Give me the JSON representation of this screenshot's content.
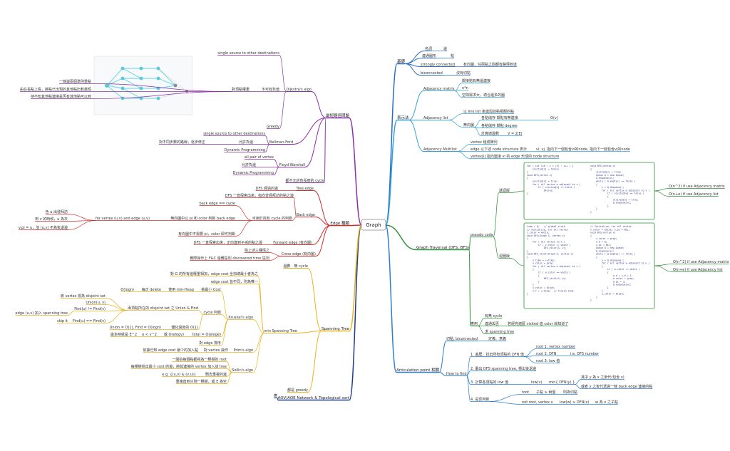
{
  "root": "Graph",
  "branches": [
    {
      "label": "基礎",
      "color": "#2b6cc4",
      "children": [
        {
          "label": "名詞",
          "children": [
            {
              "label": "邊"
            }
          ]
        },
        {
          "label": "連通圖形",
          "children": [
            {
              "label": "點"
            }
          ]
        },
        {
          "label": "strongly connected",
          "children": [
            {
              "label": "有向圖，任兩點之間都有路徑到達"
            }
          ]
        },
        {
          "label": "biconnected",
          "children": [
            {
              "label": "沒有切點"
            }
          ]
        }
      ]
    },
    {
      "label": "表示法",
      "color": "#2fa3d8",
      "children": [
        {
          "label": "Adjacency matrix",
          "children": [
            {
              "label": "鄰接點有無邊連接"
            },
            {
              "label": "n*n"
            },
            {
              "label": "空間需求大，適合邊多的圖"
            }
          ]
        },
        {
          "label": "Adjacency list",
          "children": [
            {
              "label": "以 link list 串連與該點相鄰的點"
            },
            {
              "label": "無向圖",
              "children": [
                {
                  "label": "各點儲存 鄰點有無連接",
                  "children": [
                    {
                      "label": "O(v)"
                    }
                  ]
                },
                {
                  "label": "各點儲存 鄰點 degree"
                },
                {
                  "label": "計算總邊數",
                  "children": [
                    {
                      "label": "V = 2|E|"
                    }
                  ]
                }
              ]
            }
          ]
        },
        {
          "label": "Adjacency Multilist",
          "children": [
            {
              "label": "vertex 組成陣列"
            },
            {
              "label": "edge 以下述 node structure 表示",
              "children": [
                {
                  "label": "vi, vj, 指向下一個包含vi的node, 指向下一個包含vj的node"
                }
              ]
            },
            {
              "label": "vertex[i] 指向連接 vi 的 edge 形成的 node structure"
            }
          ]
        }
      ]
    },
    {
      "label": "Graph Traversal (DFS, BFS)",
      "color": "#2e8f3a",
      "children": [
        {
          "label": "pseudo code",
          "children": [
            {
              "label": "遞迴版",
              "code": {
                "left": [
                  "for ( int i=0 ; i < |V| ; i++ ) {",
                  "    visited[i] = false;",
                  "}",
                  "void DFS(vertex v)",
                  "{",
                  "    visited[v] = true;",
                  "    for ( all vertex w adjacent to v )",
                  "        if ( visited[w] == false )",
                  "            DFS(w);",
                  "}"
                ],
                "right": [
                  "void BFS(vertex v)",
                  "{",
                  "    visited[v] = true;",
                  "    Queue Q = new Queue;",
                  "    Q.enqueue(v);",
                  "    while ( Q.empty() == false )",
                  "    {",
                  "        v = Q.dequeue();",
                  "        for ( all vertex w adjacent to v )",
                  "            if ( visited[w] == false )",
                  "            {",
                  "                visited[w] = true;",
                  "                Q.enqueue(w);",
                  "            }",
                  "    }",
                  "}"
                ]
              },
              "children": [
                {
                  "label": "O(n^2) if use Adjacency matrix"
                },
                {
                  "label": "O(n+e) if use Adjacency list"
                }
              ]
            },
            {
              "label": "迴圈版",
              "code": {
                "left": [
                  "time = 0;   // global clock",
                  "// Initialize, for all vertex",
                  "c.color = white;",
                  "void DFS(Graph G, vertex v)",
                  "{",
                  "    for ( all vertex in G )",
                  "        if ( v.color == white )",
                  "            DFS_visit(G, v);",
                  "}",
                  "void DFS_visit(Graph G, vertex v)",
                  "{",
                  "    v.time = ++time;",
                  "    v.color = gray;",
                  "    for ( all vertex w adjacent to v )",
                  "    {",
                  "        if ( w.color == white )",
                  "        {",
                  "            DFS_visit(G, w);",
                  "        }",
                  "    }",
                  "    v.color = black;",
                  "    v.f = ++time;  // finish time",
                  "}"
                ],
                "right": [
                  "// Initialize, for all vertex",
                  "v.color = white; v.pi = NIL;",
                  "void BFS(vertex v)",
                  "{",
                  "    v.color = gray;",
                  "    v.d = 0;",
                  "    v.pi = NIL;",
                  "    Queue Q = new Queue;",
                  "    Q.enqueue(v);",
                  "    while ( Q.empty() == false )",
                  "    {",
                  "        u = Q.dequeue();",
                  "        for ( all vertex w adjacent to u )",
                  "        {",
                  "            if ( w.color == white )",
                  "            {",
                  "                w.d = u.d + 1;",
                  "                w.color = gray;",
                  "                w.pi = u;",
                  "                Q.enqueue(w);",
                  "            }",
                  "        }",
                  "        u.color = black;",
                  "    }",
                  "}"
                ]
              },
              "children": [
                {
                  "label": "O(n^2) if use Adjacency matrix"
                },
                {
                  "label": "O(n+e) if use Adjacency list"
                }
              ]
            }
          ]
        },
        {
          "label": "應用",
          "children": [
            {
              "label": "有無 cycle"
            },
            {
              "label": "連通與否",
              "children": [
                {
                  "label": "若經完遍歷 visited 值 color 就知道了"
                }
              ]
            },
            {
              "label": "求 spanning tree"
            }
          ]
        }
      ]
    },
    {
      "label": "Articulation point 相關",
      "color": "#2a7fd4",
      "children": [
        {
          "label": "切點, biconnected",
          "children": [
            {
              "label": "定義、意義"
            }
          ]
        },
        {
          "label": "How to find",
          "children": [
            {
              "label": "1. 遍歷，找出所有頂點的 DFN 值",
              "children": [
                {
                  "label": "root 1: vertex number"
                },
                {
                  "label": "root 2: DFN",
                  "children": [
                    {
                      "label": "i.e. DFS number"
                    }
                  ]
                },
                {
                  "label": "root 3: low 值"
                }
              ]
            },
            {
              "label": "2. 畫出 DFS spanning tree, 標出後退邊"
            },
            {
              "label": "3. 計算各頂點的 low 值",
              "children": [
                {
                  "label": "low(v)",
                  "children": [
                    {
                      "label": "min{ DFN(y) }",
                      "children": [
                        {
                          "label": "其中 y 為 x 之後代(包含 x)"
                        },
                        {
                          "label": "或者 x 之後代透過一條 back edge 連接的點"
                        }
                      ]
                    }
                  ]
                }
              ]
            },
            {
              "label": "4. 是否判斷",
              "children": [
                {
                  "label": "root",
                  "children": [
                    {
                      "label": "子點 ≥ 兩個",
                      "children": [
                        {
                          "label": "則為切點"
                        }
                      ]
                    }
                  ]
                },
                {
                  "label": "not root, vertex x",
                  "children": [
                    {
                      "label": "low(w) ≥ DFN(x)",
                      "children": [
                        {
                          "label": "w 為 x 之子點"
                        }
                      ]
                    }
                  ]
                }
              ]
            }
          ]
        }
      ]
    },
    {
      "label": "AOV/AOE Network & Topological sort",
      "color": "#1e3c8c",
      "children": [
        {
          "label": "應"
        }
      ]
    },
    {
      "label": "最短路徑問題",
      "color": "#8b2fa8",
      "children": [
        {
          "label": "Dijkstra's algo",
          "children": [
            {
              "label": "single source to other destinations"
            },
            {
              "label": "不可有負值",
              "children": [
                {
                  "label": "對頂點權重",
                  "children": [
                    {
                      "label": "一條邊兩個準則重點"
                    },
                    {
                      "label": "由在長點上看，將點已出現的其他點比較最短"
                    },
                    {
                      "label": "持不知其他點連接是否有其他點可以到"
                    }
                  ]
                }
              ]
            },
            {
              "label": "Greedy"
            }
          ]
        },
        {
          "label": "Bellman-Ford",
          "children": [
            {
              "label": "single source to other destinations"
            },
            {
              "label": "允許負邊",
              "children": [
                {
                  "label": "對不同步數的路線，逐步修正"
                }
              ]
            },
            {
              "label": "Dynamic Programming"
            }
          ]
        },
        {
          "label": "Floyd-Warshall",
          "children": [
            {
              "label": "all pair of vertex"
            },
            {
              "label": "允許負邊"
            },
            {
              "label": "Dynamic Programming"
            }
          ]
        },
        {
          "label": "都不允許負長度的 cycle"
        }
      ]
    },
    {
      "label": "Edge 種類",
      "color": "#d42b2b",
      "children": [
        {
          "label": "Tree edge",
          "children": [
            {
              "label": "DFS 經過的邊"
            }
          ]
        },
        {
          "label": "Back edge",
          "children": [
            {
              "label": "DFS 一直探索出來，指向曾經拜訪的點之邊"
            },
            {
              "label": "可用於找有 cycle 的判斷",
              "children": [
                {
                  "label": "back edge == cycle"
                },
                {
                  "label": "無向圖中以 pi 和 color 判斷 back edge",
                  "children": [
                    {
                      "label": "for vertex (u,v) and edge (u,v)",
                      "children": [
                        {
                          "label": "色 u 出發拜訪"
                        },
                        {
                          "label": "到 v 的時候，u 為灰"
                        },
                        {
                          "label": "v.pi = u，並 (u,v) 不為後退邊"
                        }
                      ]
                    }
                  ]
                },
                {
                  "label": "有向圖中不需要 pi，color 即可判斷"
                }
              ]
            }
          ]
        },
        {
          "label": "Forward edge (有向圖)",
          "children": [
            {
              "label": "DFS 一直探索出來，正向連到子孫的點之邊"
            }
          ]
        },
        {
          "label": "Cross edge (有向圖)",
          "children": [
            {
              "label": "除上述三種情之"
            },
            {
              "label": "實際操作上 F&C 邊難區別 discovered time 區別"
            }
          ]
        }
      ]
    },
    {
      "label": "Spanning Tree",
      "color": "#e9b21c",
      "children": [
        {
          "label": "邊數 - 無 cycle"
        },
        {
          "label": "min Spanning Tree",
          "children": [
            {
              "label": "對 G 的所有邊權重相加，edge cost 全加總最小者為之"
            },
            {
              "label": "edge cost 皆不同，則為唯一"
            },
            {
              "label": "Kruskal's algo",
              "children": [
                {
                  "label": "挑最小 Cost",
                  "children": [
                    {
                      "label": "使用 min-Heap",
                      "children": [
                        {
                          "label": "每次 delete",
                          "children": [
                            {
                              "label": "O(logn)"
                            }
                          ]
                        }
                      ]
                    }
                  ]
                },
                {
                  "label": "cycle 判斷",
                  "children": [
                    {
                      "label": "兩頂點所在的 disjoint set 之 Union & Find",
                      "children": [
                        {
                          "label": "將 vertex 視為 disjoint set"
                        },
                        {
                          "label": "Union(u, v)"
                        },
                        {
                          "label": "Find(u) != Find(v)",
                          "children": [
                            {
                              "label": "edge (u,v) 加入 spanning tree"
                            }
                          ]
                        },
                        {
                          "label": "Find(u) == Find(v)",
                          "children": [
                            {
                              "label": "skip it"
                            }
                          ]
                        }
                      ]
                    },
                    {
                      "label": "優化過後的 O(1)",
                      "children": [
                        {
                          "label": "Union = O(1), Find = O(logn)"
                        }
                      ]
                    }
                  ]
                },
                {
                  "label": "total = O(eloge)",
                  "children": [
                    {
                      "label": "或 O(elogv)",
                      "children": [
                        {
                          "label": "e < v^2",
                          "children": [
                            {
                              "label": "邊多時就是 E^2"
                            }
                          ]
                        }
                      ]
                    }
                  ]
                },
                {
                  "label": "對 edge 排序"
                }
              ]
            },
            {
              "label": "Prim's algo",
              "children": [
                {
                  "label": "對 vertex 操作",
                  "children": [
                    {
                      "label": "依據已知 edge cost 最少的加入點"
                    }
                  ]
                }
              ]
            },
            {
              "label": "Sollin's algo",
              "children": [
                {
                  "label": "一開始每個點都視為一棵樹的 root"
                },
                {
                  "label": "每棵樹找出最小 cost 的邊，將其連接的 vertex 加入該 tree"
                },
                {
                  "label": "刪去重複的邊",
                  "children": [
                    {
                      "label": "e.g. {(u,v) & (v,u)}"
                    }
                  ]
                },
                {
                  "label": "重複直到只剩一棵樹，或 E 為空"
                }
              ]
            }
          ]
        },
        {
          "label": "都是 greedy"
        }
      ]
    }
  ]
}
